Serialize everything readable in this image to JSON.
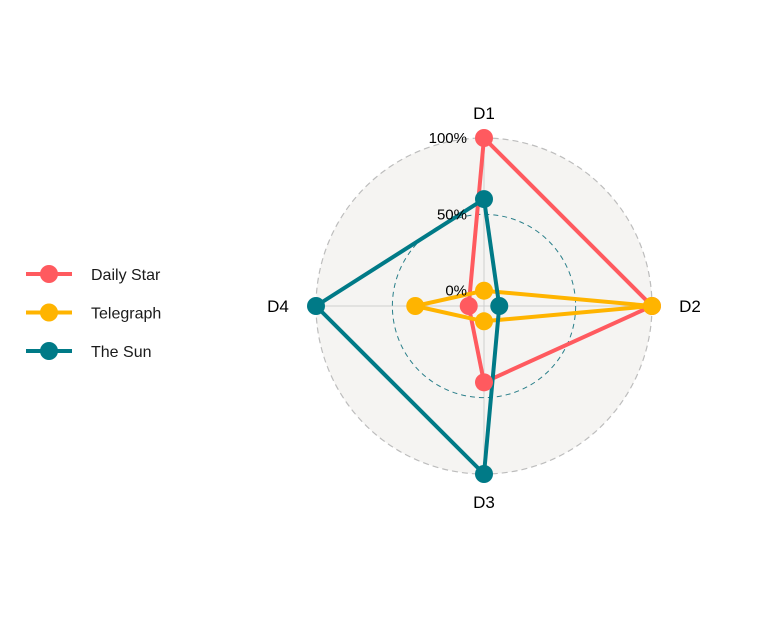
{
  "chart_data": {
    "type": "radar",
    "title": "",
    "axes": [
      "D1",
      "D2",
      "D3",
      "D4"
    ],
    "radial_ticks": [
      "0%",
      "50%",
      "100%"
    ],
    "rlim": [
      -0.1,
      1.0
    ],
    "grid": "dashed circles at 50% and 100%",
    "legend_position": "left",
    "series": [
      {
        "name": "Daily Star",
        "color": "#FF5A5F",
        "values": [
          1.0,
          1.0,
          0.4,
          0.0
        ]
      },
      {
        "name": "Telegraph",
        "color": "#FFB400",
        "values": [
          0.0,
          1.0,
          0.0,
          0.35
        ]
      },
      {
        "name": "The Sun",
        "color": "#007A87",
        "values": [
          0.6,
          0.0,
          1.0,
          1.0
        ]
      }
    ]
  }
}
